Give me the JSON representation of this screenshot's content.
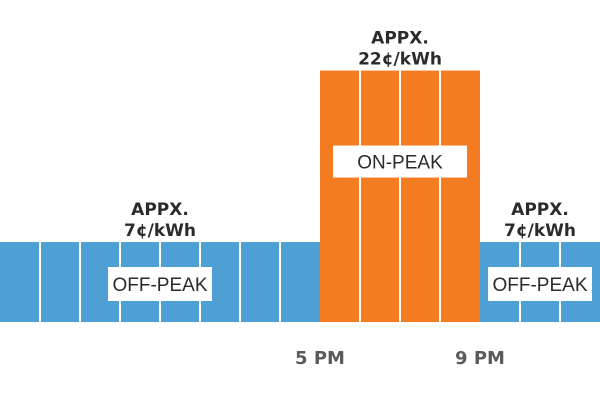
{
  "chart_data": {
    "type": "bar",
    "unit": "¢/kWh",
    "x_ticks": [
      {
        "label": "5 PM",
        "hour": 17
      },
      {
        "label": "9 PM",
        "hour": 21
      }
    ],
    "periods": [
      {
        "label": "OFF-PEAK",
        "start_hour": 9,
        "end_hour": 17,
        "rate": 7,
        "rate_line1": "APPX.",
        "rate_line2": "7¢/kWh",
        "color": "#4f9fd7"
      },
      {
        "label": "ON-PEAK",
        "start_hour": 17,
        "end_hour": 21,
        "rate": 22,
        "rate_line1": "APPX.",
        "rate_line2": "22¢/kWh",
        "color": "#f47b20"
      },
      {
        "label": "OFF-PEAK",
        "start_hour": 21,
        "end_hour": 24,
        "rate": 7,
        "rate_line1": "APPX.",
        "rate_line2": "7¢/kWh",
        "color": "#4f9fd7"
      }
    ]
  }
}
